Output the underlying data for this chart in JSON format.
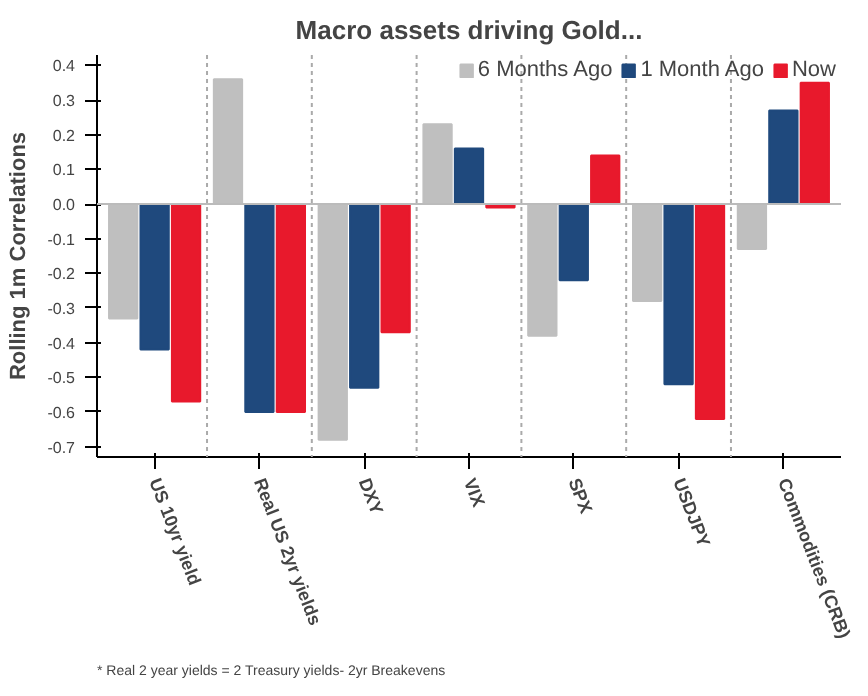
{
  "chart_data": {
    "type": "bar",
    "title": "Macro assets driving Gold...",
    "ylabel": "Rolling 1m Correlations",
    "categories": [
      "US 10yr yield",
      "Real US 2yr yields",
      "DXY",
      "VIX",
      "SPX",
      "USDJPY",
      "Commodities (CRB)"
    ],
    "series": [
      {
        "name": "6 Months Ago",
        "color": "#bfbfbf",
        "values": [
          -0.33,
          0.36,
          -0.68,
          0.23,
          -0.38,
          -0.28,
          -0.13
        ]
      },
      {
        "name": "1 Month Ago",
        "color": "#1f497d",
        "values": [
          -0.42,
          -0.6,
          -0.53,
          0.16,
          -0.22,
          -0.52,
          0.27
        ]
      },
      {
        "name": "Now",
        "color": "#e8192c",
        "values": [
          -0.57,
          -0.6,
          -0.37,
          -0.01,
          0.14,
          -0.62,
          0.35
        ]
      }
    ],
    "ylim": [
      -0.73,
      0.43
    ],
    "yticks": [
      0.4,
      0.3,
      0.2,
      0.1,
      {
        "value": 0,
        "label": "0.0"
      },
      -0.1,
      -0.2,
      -0.3,
      -0.4,
      -0.5,
      -0.6,
      -0.7
    ],
    "grid": "x",
    "legend": "top right",
    "annotations": [
      "* Real 2 year yields = 2 Treasury yields- 2yr Breakevens"
    ]
  }
}
